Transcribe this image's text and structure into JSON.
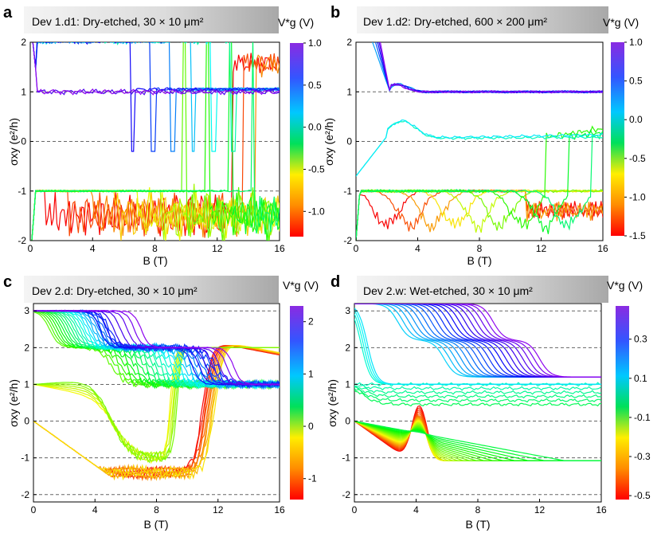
{
  "figure": {
    "panels": [
      "a",
      "b",
      "c",
      "d"
    ]
  },
  "chart_data": [
    {
      "panel_letter": "a",
      "title": "Dev 1.d1: Dry-etched, 30 × 10 μm²",
      "type": "line",
      "xlabel": "B (T)",
      "ylabel": "σxy (e²/h)",
      "xlim": [
        0,
        16
      ],
      "ylim": [
        -2,
        2
      ],
      "xticks": [
        "0",
        "4",
        "8",
        "12",
        "16"
      ],
      "yticks": [
        "-2",
        "-1",
        "0",
        "1",
        "2"
      ],
      "dashed_lines_y": [
        -1,
        0,
        1
      ],
      "colorbar": {
        "label": "V*g (V)",
        "min": -1.3,
        "max": 1.0,
        "ticks": [
          {
            "value": 1.0,
            "label": "1.0"
          },
          {
            "value": 0.5,
            "label": "0.5"
          },
          {
            "value": 0.0,
            "label": "0.0"
          },
          {
            "value": -0.5,
            "label": "-0.5"
          },
          {
            "value": -1.0,
            "label": "-1.0"
          }
        ]
      },
      "family": {
        "kind": "a",
        "n": 18,
        "vmin": -1.2,
        "vmax": 1.0
      }
    },
    {
      "panel_letter": "b",
      "title": "Dev 1.d2: Dry-etched, 600 × 200 μm²",
      "type": "line",
      "xlabel": "B (T)",
      "ylabel": "σxy (e²/h)",
      "xlim": [
        0,
        16
      ],
      "ylim": [
        -2,
        2
      ],
      "xticks": [
        "0",
        "4",
        "8",
        "12",
        "16"
      ],
      "yticks": [
        "-2",
        "-1",
        "0",
        "1",
        "2"
      ],
      "dashed_lines_y": [
        -1,
        0,
        1
      ],
      "colorbar": {
        "label": "V*g (V)",
        "min": -1.5,
        "max": 1.0,
        "ticks": [
          {
            "value": 1.0,
            "label": "1.0"
          },
          {
            "value": 0.5,
            "label": "0.5"
          },
          {
            "value": 0.0,
            "label": "0.0"
          },
          {
            "value": -0.5,
            "label": "-0.5"
          },
          {
            "value": -1.0,
            "label": "-1.0"
          },
          {
            "value": -1.5,
            "label": "-1.5"
          }
        ]
      },
      "family": {
        "kind": "b",
        "n": 16,
        "vmin": -1.5,
        "vmax": 1.0
      }
    },
    {
      "panel_letter": "c",
      "title": "Dev 2.d: Dry-etched, 30 × 10 μm²",
      "type": "line",
      "xlabel": "B (T)",
      "ylabel": "σxy (e²/h)",
      "xlim": [
        0,
        16
      ],
      "ylim": [
        -2.2,
        3.2
      ],
      "xticks": [
        "0",
        "4",
        "8",
        "12",
        "16"
      ],
      "yticks": [
        "-2",
        "-1",
        "0",
        "1",
        "2",
        "3"
      ],
      "dashed_lines_y": [
        -2,
        -1,
        0,
        1,
        2,
        3
      ],
      "colorbar": {
        "label": "V*g (V)",
        "min": -1.4,
        "max": 2.3,
        "ticks": [
          {
            "value": 2,
            "label": "2"
          },
          {
            "value": 1,
            "label": "1"
          },
          {
            "value": 0,
            "label": "0"
          },
          {
            "value": -1,
            "label": "-1"
          }
        ]
      },
      "family": {
        "kind": "c",
        "n": 46,
        "vmin": -1.4,
        "vmax": 2.3
      }
    },
    {
      "panel_letter": "d",
      "title": "Dev 2.w: Wet-etched, 30 × 10 μm²",
      "type": "line",
      "xlabel": "B (T)",
      "ylabel": "σxy (e²/h)",
      "xlim": [
        0,
        16
      ],
      "ylim": [
        -2.2,
        3.2
      ],
      "xticks": [
        "0",
        "4",
        "8",
        "12",
        "16"
      ],
      "yticks": [
        "-2",
        "-1",
        "0",
        "1",
        "2",
        "3"
      ],
      "dashed_lines_y": [
        -2,
        -1,
        0,
        1,
        2,
        3
      ],
      "colorbar": {
        "label": "V*g (V)",
        "min": -0.52,
        "max": 0.47,
        "ticks": [
          {
            "value": 0.3,
            "label": "0.3"
          },
          {
            "value": 0.1,
            "label": "0.1"
          },
          {
            "value": -0.1,
            "label": "-0.1"
          },
          {
            "value": -0.3,
            "label": "-0.3"
          },
          {
            "value": -0.5,
            "label": "-0.5"
          }
        ]
      },
      "family": {
        "kind": "d",
        "n": 56,
        "vmin": -0.52,
        "vmax": 0.47
      }
    }
  ]
}
